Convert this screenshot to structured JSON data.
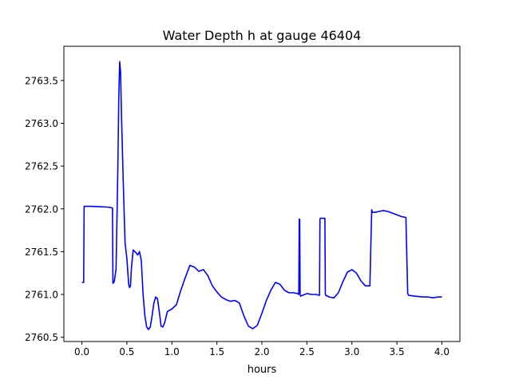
{
  "chart_data": {
    "type": "line",
    "title": "Water Depth h at gauge 46404",
    "xlabel": "hours",
    "ylabel": "",
    "xlim": [
      -0.2,
      4.2
    ],
    "ylim": [
      2760.45,
      2763.9
    ],
    "xticks": [
      0.0,
      0.5,
      1.0,
      1.5,
      2.0,
      2.5,
      3.0,
      3.5,
      4.0
    ],
    "xtick_labels": [
      "0.0",
      "0.5",
      "1.0",
      "1.5",
      "2.0",
      "2.5",
      "3.0",
      "3.5",
      "4.0"
    ],
    "yticks": [
      2760.5,
      2761.0,
      2761.5,
      2762.0,
      2762.5,
      2763.0,
      2763.5
    ],
    "ytick_labels": [
      "2760.5",
      "2761.0",
      "2761.5",
      "2762.0",
      "2762.5",
      "2763.0",
      "2763.5"
    ],
    "grid": false,
    "legend": "none",
    "series": [
      {
        "color": "#0000ff",
        "x": [
          0.0,
          0.02,
          0.025,
          0.03,
          0.1,
          0.2,
          0.3,
          0.34,
          0.345,
          0.36,
          0.38,
          0.4,
          0.41,
          0.42,
          0.43,
          0.44,
          0.46,
          0.48,
          0.5,
          0.52,
          0.53,
          0.54,
          0.55,
          0.57,
          0.6,
          0.62,
          0.64,
          0.66,
          0.68,
          0.7,
          0.72,
          0.74,
          0.76,
          0.78,
          0.8,
          0.82,
          0.84,
          0.86,
          0.88,
          0.9,
          0.92,
          0.95,
          1.0,
          1.05,
          1.1,
          1.15,
          1.2,
          1.25,
          1.3,
          1.35,
          1.4,
          1.45,
          1.5,
          1.55,
          1.6,
          1.65,
          1.7,
          1.75,
          1.8,
          1.85,
          1.9,
          1.95,
          2.0,
          2.05,
          2.1,
          2.15,
          2.2,
          2.25,
          2.3,
          2.35,
          2.4,
          2.41,
          2.415,
          2.42,
          2.425,
          2.43,
          2.5,
          2.55,
          2.6,
          2.64,
          2.645,
          2.65,
          2.7,
          2.705,
          2.71,
          2.75,
          2.8,
          2.85,
          2.9,
          2.95,
          3.0,
          3.05,
          3.1,
          3.15,
          3.2,
          3.22,
          3.225,
          3.23,
          3.26,
          3.3,
          3.35,
          3.4,
          3.45,
          3.5,
          3.55,
          3.6,
          3.62,
          3.625,
          3.63,
          3.7,
          3.8,
          3.85,
          3.9,
          3.95,
          4.0
        ],
        "y": [
          2761.14,
          2761.14,
          2762.03,
          2762.03,
          2762.03,
          2762.025,
          2762.02,
          2762.01,
          2761.13,
          2761.15,
          2761.3,
          2762.5,
          2763.3,
          2763.72,
          2763.6,
          2763.1,
          2762.3,
          2761.6,
          2761.42,
          2761.12,
          2761.08,
          2761.1,
          2761.3,
          2761.52,
          2761.49,
          2761.46,
          2761.5,
          2761.4,
          2761.0,
          2760.75,
          2760.62,
          2760.59,
          2760.62,
          2760.75,
          2760.9,
          2760.97,
          2760.95,
          2760.8,
          2760.63,
          2760.62,
          2760.67,
          2760.8,
          2760.83,
          2760.88,
          2761.05,
          2761.2,
          2761.34,
          2761.32,
          2761.27,
          2761.29,
          2761.22,
          2761.1,
          2761.03,
          2760.97,
          2760.94,
          2760.92,
          2760.93,
          2760.9,
          2760.75,
          2760.63,
          2760.6,
          2760.64,
          2760.78,
          2760.93,
          2761.05,
          2761.14,
          2761.12,
          2761.05,
          2761.02,
          2761.02,
          2761.01,
          2761.0,
          2761.88,
          2761.88,
          2761.0,
          2760.98,
          2761.01,
          2761.0,
          2761.0,
          2760.99,
          2761.88,
          2761.89,
          2761.89,
          2761.0,
          2760.99,
          2760.97,
          2760.96,
          2761.02,
          2761.15,
          2761.26,
          2761.29,
          2761.25,
          2761.16,
          2761.1,
          2761.1,
          2761.99,
          2761.97,
          2761.96,
          2761.96,
          2761.97,
          2761.98,
          2761.97,
          2761.95,
          2761.93,
          2761.91,
          2761.9,
          2761.01,
          2761.0,
          2760.99,
          2760.98,
          2760.97,
          2760.97,
          2760.96,
          2760.97,
          2760.97
        ]
      }
    ]
  }
}
